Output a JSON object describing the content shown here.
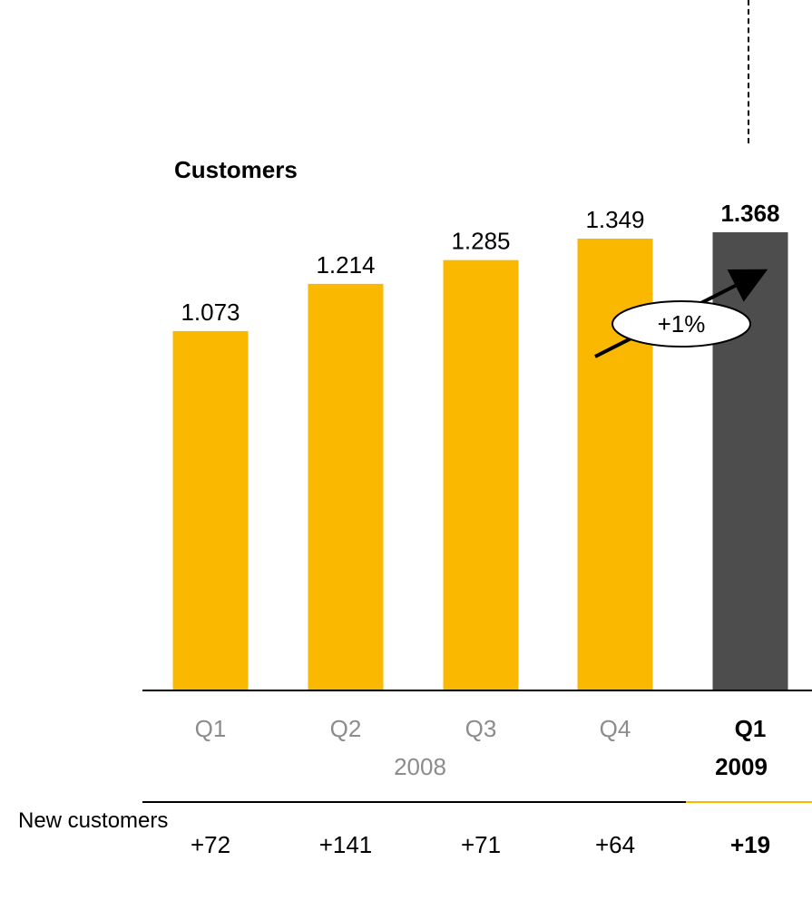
{
  "chart_data": {
    "type": "bar",
    "title": "Customers",
    "categories": [
      "Q1",
      "Q2",
      "Q3",
      "Q4",
      "Q1"
    ],
    "value_labels": [
      "1.073",
      "1.214",
      "1.285",
      "1.349",
      "1.368"
    ],
    "values": [
      1.073,
      1.214,
      1.285,
      1.349,
      1.368
    ],
    "ylim": [
      0,
      1.4
    ],
    "years": [
      {
        "label": "2008",
        "categories": [
          "Q1",
          "Q2",
          "Q3",
          "Q4"
        ]
      },
      {
        "label": "2009",
        "categories": [
          "Q1"
        ]
      }
    ],
    "highlighted_index": 4,
    "annotation": {
      "text": "+1%",
      "from": "Q4",
      "to": "Q1 2009"
    },
    "colors": {
      "past": "#fbb800",
      "current": "#4d4d4d",
      "past_label": "#8c8c8c",
      "accent_line": "#fbb800"
    }
  },
  "new_customers": {
    "label": "New customers",
    "values": [
      "+72",
      "+141",
      "+71",
      "+64",
      "+19"
    ]
  }
}
